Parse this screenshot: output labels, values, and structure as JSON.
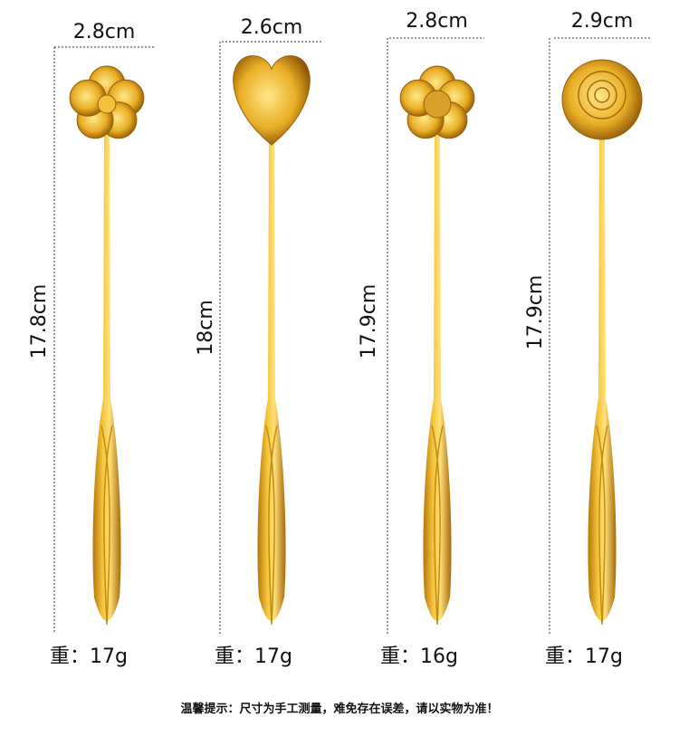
{
  "spoons": [
    {
      "width": "2.8cm",
      "length": "17.8cm",
      "weight": "重：17g"
    },
    {
      "width": "2.6cm",
      "length": "18cm",
      "weight": "重：17g"
    },
    {
      "width": "2.8cm",
      "length": "17.9cm",
      "weight": "重：16g"
    },
    {
      "width": "2.9cm",
      "length": "17.9cm",
      "weight": "重：17g"
    }
  ],
  "note": "温馨提示：尺寸为手工测量，难免存在误差，请以实物为准！"
}
